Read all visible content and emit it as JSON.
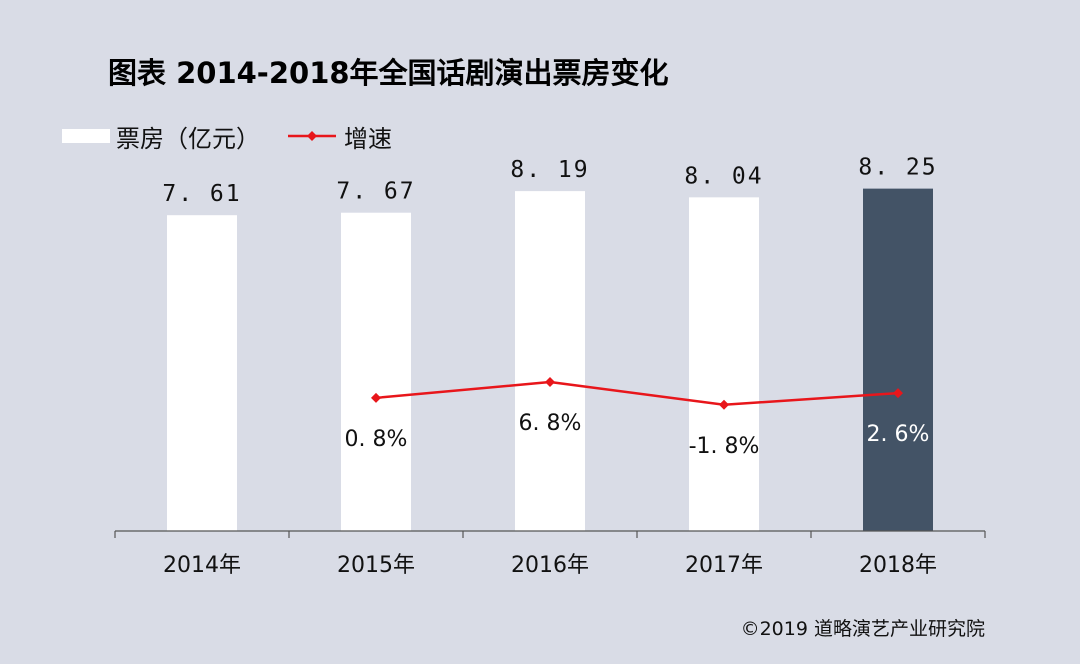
{
  "title": "图表  2014-2018年全国话剧演出票房变化",
  "footer": "©2019 道略演艺产业研究院",
  "legend": {
    "bar_label": "票房（亿元）",
    "line_label": "增速"
  },
  "colors": {
    "background": "#d9dce6",
    "bar": "#ffffff",
    "bar_highlight": "#435366",
    "line": "#e8161b",
    "axis": "#555555"
  },
  "chart_data": {
    "type": "bar",
    "title": "图表  2014-2018年全国话剧演出票房变化",
    "categories": [
      "2014年",
      "2015年",
      "2016年",
      "2017年",
      "2018年"
    ],
    "series": [
      {
        "name": "票房（亿元）",
        "type": "bar",
        "values": [
          7.61,
          7.67,
          8.19,
          8.04,
          8.25
        ],
        "value_labels": [
          "7. 61",
          "7. 67",
          "8. 19",
          "8. 04",
          "8. 25"
        ],
        "highlight_index": 4
      },
      {
        "name": "增速",
        "type": "line",
        "values": [
          null,
          0.8,
          6.8,
          -1.8,
          2.6
        ],
        "value_labels": [
          null,
          "0. 8%",
          "6. 8%",
          "-1. 8%",
          "2. 6%"
        ],
        "marker": "diamond"
      }
    ],
    "bar_ylim": [
      0,
      10
    ],
    "line_ylim": [
      -25,
      17
    ],
    "xlabel": "",
    "ylabel": "",
    "grid": false,
    "legend_position": "top-left"
  }
}
